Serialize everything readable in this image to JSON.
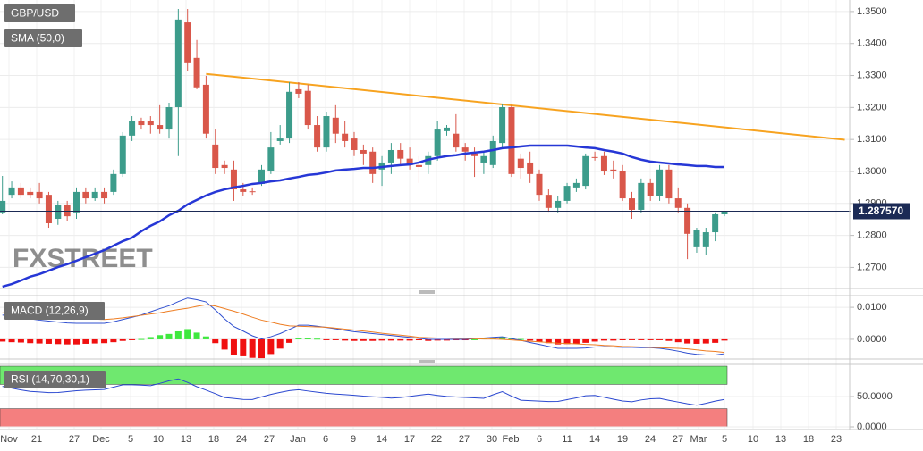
{
  "chart_data": [
    {
      "type": "candlestick",
      "title": "GBP/USD",
      "watermark": "FXSTREET",
      "x_labels": [
        "Nov",
        "21",
        "27",
        "Dec",
        "5",
        "10",
        "13",
        "18",
        "24",
        "27",
        "Jan",
        "6",
        "9",
        "14",
        "17",
        "22",
        "27",
        "30",
        "Feb",
        "6",
        "11",
        "14",
        "19",
        "24",
        "27",
        "Mar",
        "5",
        "10",
        "13",
        "18",
        "23"
      ],
      "open": [
        1.2872,
        1.2927,
        1.295,
        1.2936,
        1.2936,
        1.2927,
        1.2852,
        1.2894,
        1.2872,
        1.2936,
        1.2916,
        1.2936,
        1.2936,
        1.2992,
        1.3112,
        1.3157,
        1.3157,
        1.3145,
        1.3131,
        1.3201,
        1.3466,
        1.3355,
        1.3271,
        1.3084,
        1.302,
        1.3006,
        1.2944,
        1.2938,
        1.2961,
        1.3,
        1.3095,
        1.3103,
        1.3257,
        1.3252,
        1.3145,
        1.3075,
        1.3168,
        1.3118,
        1.3103,
        1.3067,
        1.3062,
        1.3006,
        1.3028,
        1.3067,
        1.304,
        1.302,
        1.302,
        1.3048,
        1.3126,
        1.3118,
        1.3075,
        1.3056,
        1.3028,
        1.302,
        1.3089,
        1.3201,
        1.304,
        1.3028,
        1.2992,
        1.2927,
        1.2886,
        1.2908,
        1.295,
        1.2955,
        1.3045,
        1.3048,
        1.3006,
        1.3,
        1.2916,
        1.288,
        1.2964,
        1.2922,
        1.3006,
        1.2916,
        1.2886,
        1.2763,
        1.2763,
        1.281,
        1.2866
      ],
      "high": [
        1.2986,
        1.2969,
        1.2964,
        1.295,
        1.2964,
        1.2936,
        1.2908,
        1.2908,
        1.295,
        1.295,
        1.295,
        1.295,
        1.3006,
        1.3123,
        1.3173,
        1.3168,
        1.3173,
        1.3207,
        1.3215,
        1.3508,
        1.3508,
        1.3411,
        1.3299,
        1.3131,
        1.3034,
        1.3034,
        1.2964,
        1.295,
        1.302,
        1.3123,
        1.3145,
        1.3279,
        1.3279,
        1.3271,
        1.3173,
        1.3187,
        1.3207,
        1.3159,
        1.3123,
        1.3084,
        1.3075,
        1.3048,
        1.3089,
        1.3089,
        1.3075,
        1.3048,
        1.3062,
        1.3159,
        1.3145,
        1.3179,
        1.3089,
        1.3075,
        1.3062,
        1.3112,
        1.321,
        1.3207,
        1.3056,
        1.3062,
        1.3006,
        1.2944,
        1.2922,
        1.2964,
        1.2978,
        1.3056,
        1.3062,
        1.3062,
        1.3034,
        1.302,
        1.2936,
        1.2978,
        1.2978,
        1.302,
        1.302,
        1.295,
        1.29,
        1.2824,
        1.2824,
        1.2872,
        1.2877
      ],
      "low": [
        1.2866,
        1.2916,
        1.2916,
        1.2916,
        1.29,
        1.2824,
        1.2833,
        1.2844,
        1.2852,
        1.29,
        1.2908,
        1.29,
        1.2927,
        1.2983,
        1.3095,
        1.3131,
        1.3118,
        1.3118,
        1.3103,
        1.3048,
        1.3313,
        1.3257,
        1.3103,
        1.2992,
        1.2992,
        1.2908,
        1.2922,
        1.2927,
        1.2955,
        1.2992,
        1.3084,
        1.3089,
        1.3229,
        1.3131,
        1.3062,
        1.3062,
        1.3089,
        1.3075,
        1.3048,
        1.302,
        1.2964,
        1.2955,
        1.2992,
        1.302,
        1.3006,
        1.2964,
        1.2992,
        1.3034,
        1.3112,
        1.3062,
        1.3034,
        1.2983,
        1.2992,
        1.3011,
        1.3075,
        1.2983,
        1.2978,
        1.2964,
        1.2908,
        1.2874,
        1.2872,
        1.29,
        1.2936,
        1.2944,
        1.3034,
        1.2989,
        1.2978,
        1.2908,
        1.2852,
        1.2872,
        1.2908,
        1.2908,
        1.29,
        1.2872,
        1.2726,
        1.2746,
        1.274,
        1.2782,
        1.286
      ],
      "close": [
        1.2908,
        1.295,
        1.2927,
        1.2927,
        1.2916,
        1.2838,
        1.2894,
        1.286,
        1.2936,
        1.2916,
        1.2936,
        1.2916,
        1.2992,
        1.3112,
        1.3157,
        1.3145,
        1.3145,
        1.3131,
        1.3201,
        1.3475,
        1.3341,
        1.3263,
        1.3118,
        1.3011,
        1.3011,
        1.2944,
        1.2936,
        1.2936,
        1.3006,
        1.3075,
        1.3103,
        1.3249,
        1.3243,
        1.3145,
        1.3075,
        1.3173,
        1.3118,
        1.3095,
        1.3067,
        1.3056,
        1.2992,
        1.3028,
        1.3067,
        1.304,
        1.302,
        1.3014,
        1.3048,
        1.3131,
        1.3137,
        1.3075,
        1.3062,
        1.3048,
        1.3048,
        1.3095,
        1.3201,
        1.2992,
        1.3011,
        1.2992,
        1.2927,
        1.2886,
        1.2908,
        1.2955,
        1.2964,
        1.3048,
        1.3043,
        1.3,
        1.3,
        1.2916,
        1.288,
        1.2964,
        1.2922,
        1.3006,
        1.2916,
        1.2886,
        1.2805,
        1.2816,
        1.281,
        1.2866,
        1.28757
      ],
      "up_color": "#3c9c8b",
      "down_color": "#d9574a",
      "last_price": 1.28757,
      "last_price_label": "1.287570",
      "series": [
        {
          "name": "SMA (50,0)",
          "color": "#2637d6",
          "values": [
            1.264,
            1.2648,
            1.2659,
            1.2671,
            1.2679,
            1.269,
            1.2701,
            1.271,
            1.2721,
            1.2732,
            1.2743,
            1.2754,
            1.2768,
            1.2782,
            1.2793,
            1.2813,
            1.283,
            1.2844,
            1.2863,
            1.2877,
            1.2897,
            1.2911,
            1.2925,
            1.2936,
            1.2944,
            1.295,
            1.2955,
            1.2961,
            1.2964,
            1.2969,
            1.2972,
            1.2978,
            1.2983,
            1.2989,
            1.2992,
            1.2997,
            1.3003,
            1.3006,
            1.3008,
            1.3011,
            1.3011,
            1.3014,
            1.3017,
            1.302,
            1.3022,
            1.3028,
            1.3037,
            1.3043,
            1.3048,
            1.3051,
            1.3056,
            1.3059,
            1.3062,
            1.3067,
            1.3073,
            1.3075,
            1.3078,
            1.3081,
            1.3081,
            1.3081,
            1.3081,
            1.3081,
            1.3078,
            1.3075,
            1.3073,
            1.3067,
            1.3062,
            1.3056,
            1.3045,
            1.3037,
            1.3031,
            1.3028,
            1.3025,
            1.3022,
            1.302,
            1.3017,
            1.3017,
            1.3014,
            1.3014
          ]
        }
      ],
      "trendline": {
        "color": "#f7a320",
        "x": [
          22,
          91
        ],
        "values": [
          1.3305,
          1.3099
        ]
      },
      "ylim": [
        1.2637,
        1.3536
      ],
      "yticks": [
        {
          "value": 1.35,
          "label": "1.3500"
        },
        {
          "value": 1.34,
          "label": "1.3400"
        },
        {
          "value": 1.33,
          "label": "1.3300"
        },
        {
          "value": 1.32,
          "label": "1.3200"
        },
        {
          "value": 1.31,
          "label": "1.3100"
        },
        {
          "value": 1.3,
          "label": "1.3000"
        },
        {
          "value": 1.29,
          "label": "1.2900"
        },
        {
          "value": 1.28,
          "label": "1.2800"
        },
        {
          "value": 1.27,
          "label": "1.2700"
        }
      ],
      "grid": true
    },
    {
      "type": "macd",
      "title": "MACD (12,26,9)",
      "series": [
        {
          "color": "#2f4fd0",
          "values": [
            0.0076,
            0.0072,
            0.0068,
            0.0064,
            0.006,
            0.0057,
            0.0054,
            0.0051,
            0.005,
            0.005,
            0.005,
            0.005,
            0.0055,
            0.0062,
            0.0069,
            0.0076,
            0.0086,
            0.0096,
            0.0105,
            0.0118,
            0.0129,
            0.0124,
            0.0117,
            0.0092,
            0.0064,
            0.004,
            0.0026,
            0.0011,
            0.0001,
            0.0008,
            0.0018,
            0.0031,
            0.0044,
            0.0044,
            0.0041,
            0.0037,
            0.0033,
            0.0028,
            0.0024,
            0.0021,
            0.0018,
            0.0015,
            0.0012,
            0.0009,
            0.0006,
            0.0003,
            0,
            0,
            0,
            0,
            0,
            0.0002,
            0.0004,
            0.0006,
            0.0008,
            0.0002,
            -0.0003,
            -0.001,
            -0.0016,
            -0.0022,
            -0.0028,
            -0.0028,
            -0.0028,
            -0.0027,
            -0.0024,
            -0.0023,
            -0.0024,
            -0.0025,
            -0.0025,
            -0.0026,
            -0.0026,
            -0.0028,
            -0.0032,
            -0.0037,
            -0.0043,
            -0.0047,
            -0.0049,
            -0.0049,
            -0.0045
          ]
        },
        {
          "color": "#ee7d22",
          "values": [
            0.0083,
            0.0081,
            0.0078,
            0.0076,
            0.0073,
            0.0071,
            0.0069,
            0.0067,
            0.0066,
            0.0064,
            0.0063,
            0.0062,
            0.0064,
            0.0067,
            0.0071,
            0.0075,
            0.0079,
            0.0083,
            0.0088,
            0.0093,
            0.0097,
            0.0103,
            0.0108,
            0.0104,
            0.0096,
            0.0088,
            0.0079,
            0.0069,
            0.006,
            0.0054,
            0.0047,
            0.0042,
            0.0041,
            0.004,
            0.0039,
            0.0038,
            0.0035,
            0.0032,
            0.0029,
            0.0026,
            0.0023,
            0.0019,
            0.0016,
            0.0013,
            0.001,
            0.0006,
            0.0005,
            0.0004,
            0.0004,
            0.0003,
            0.0003,
            0.0002,
            0.0001,
            0.0001,
            0,
            -0.0002,
            -0.0004,
            -0.0006,
            -0.0008,
            -0.001,
            -0.0012,
            -0.0013,
            -0.0014,
            -0.0016,
            -0.0017,
            -0.0019,
            -0.002,
            -0.0022,
            -0.0023,
            -0.0024,
            -0.0025,
            -0.0026,
            -0.0027,
            -0.0028,
            -0.003,
            -0.0033,
            -0.0036,
            -0.0038,
            -0.0041
          ]
        }
      ],
      "histogram": [
        -0.0007,
        -0.0009,
        -0.001,
        -0.0012,
        -0.0013,
        -0.0014,
        -0.0015,
        -0.0016,
        -0.0016,
        -0.0014,
        -0.0013,
        -0.0012,
        -0.0009,
        -0.0005,
        -0.0002,
        0.0001,
        0.0007,
        0.0013,
        0.0017,
        0.0025,
        0.0032,
        0.0021,
        0.0009,
        -0.0012,
        -0.0032,
        -0.0048,
        -0.0053,
        -0.0058,
        -0.0059,
        -0.0046,
        -0.0029,
        -0.0011,
        0.0003,
        0.0004,
        0.0002,
        -0.0001,
        -0.0002,
        -0.0004,
        -0.0005,
        -0.0005,
        -0.0005,
        -0.0004,
        -0.0004,
        -0.0004,
        -0.0004,
        -0.0003,
        -0.0005,
        -0.0004,
        -0.0004,
        -0.0003,
        -0.0003,
        0,
        0.0003,
        0.0005,
        0.0008,
        0.0004,
        0.0001,
        -0.0004,
        -0.0008,
        -0.0012,
        -0.0016,
        -0.0015,
        -0.0014,
        -0.0011,
        -0.0007,
        -0.0004,
        -0.0004,
        -0.0003,
        -0.0002,
        -0.0002,
        -0.0001,
        -0.0002,
        -0.0005,
        -0.0009,
        -0.0013,
        -0.0014,
        -0.0013,
        -0.0011,
        -0.0004
      ],
      "positive_color": "#3ee83e",
      "negative_color": "#f01010",
      "ylim": [
        -0.0056,
        0.0131
      ],
      "yticks": [
        {
          "value": 0.01,
          "label": "0.0100"
        },
        {
          "value": 0,
          "label": "0.0000"
        }
      ],
      "grid": true
    },
    {
      "type": "rsi",
      "title": "RSI (14,70,30,1)",
      "color": "#2a47d0",
      "values": [
        66.8,
        63.8,
        60.9,
        58.4,
        57.5,
        56.5,
        56.6,
        58.1,
        59.6,
        60.4,
        61.0,
        61.6,
        65.4,
        69.3,
        69.3,
        68.8,
        67.8,
        71.6,
        75.9,
        79.1,
        73.2,
        66.2,
        60.6,
        54.7,
        48.4,
        46.8,
        45.3,
        45.1,
        49.4,
        53.5,
        56.8,
        59.7,
        61.2,
        59.1,
        57.2,
        55.3,
        54.1,
        53.1,
        52.1,
        50.7,
        49.7,
        48.7,
        47.4,
        48.4,
        50.1,
        52.2,
        54.0,
        51.9,
        50.1,
        49.3,
        48.5,
        47.8,
        47.1,
        52.9,
        58.1,
        50.7,
        44.0,
        43.2,
        42.5,
        41.8,
        41.9,
        44.9,
        47.8,
        51.3,
        51.8,
        48.8,
        45.6,
        42.6,
        41.3,
        44.4,
        46.3,
        46.8,
        43.8,
        40.9,
        38.1,
        35.7,
        38.8,
        42.5,
        45.3
      ],
      "overbought": 70,
      "oversold": 30,
      "overbought_color": "#6fe86f",
      "oversold_color": "#f47f7f",
      "ylim": [
        0,
        100
      ],
      "yticks": [
        {
          "value": 50,
          "label": "50.0000"
        },
        {
          "value": 0,
          "label": "0.0000"
        }
      ],
      "grid": true
    }
  ]
}
